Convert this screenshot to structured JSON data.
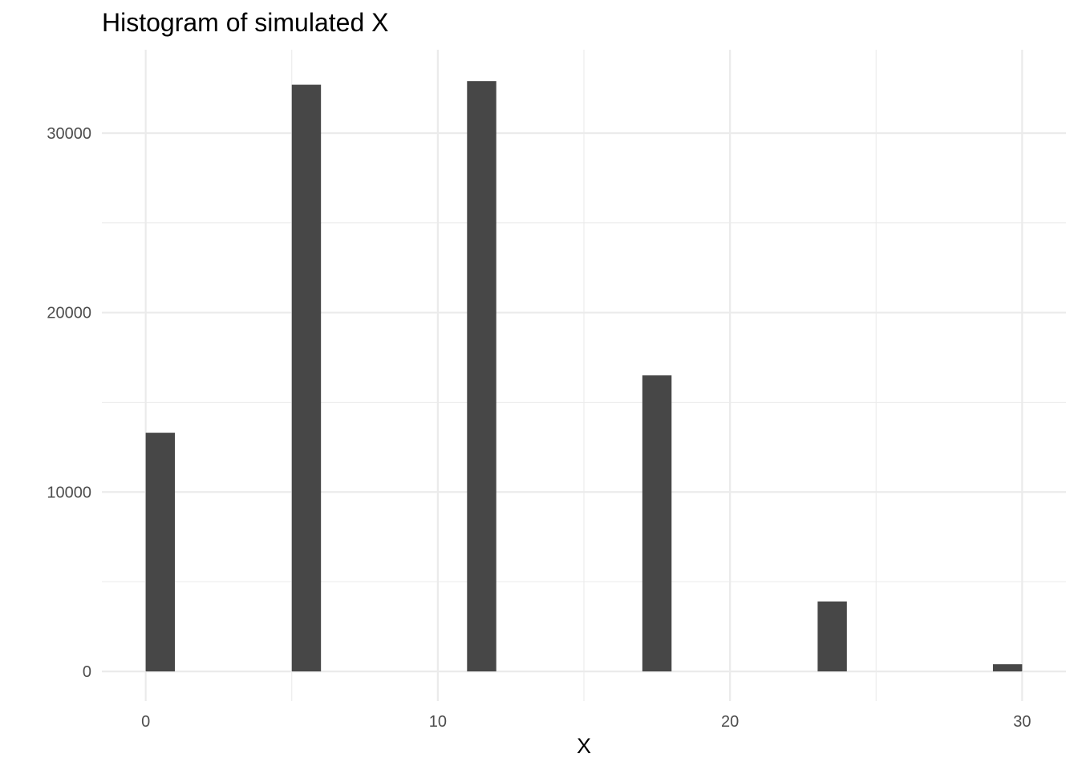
{
  "chart_data": {
    "type": "bar",
    "title": "Histogram of simulated X",
    "xlabel": "X",
    "ylabel": "",
    "bar_color": "#474747",
    "grid_color": "#ebebeb",
    "grid": true,
    "legend": "none",
    "xlim": [
      -1.5,
      31.5
    ],
    "ylim": [
      -1650,
      34650
    ],
    "bin_width": 1,
    "x_ticks": [
      0,
      10,
      20,
      30
    ],
    "x_minor_ticks": [
      5,
      15,
      25
    ],
    "y_ticks": [
      0,
      10000,
      20000,
      30000
    ],
    "y_minor_ticks": [
      5000,
      15000,
      25000
    ],
    "x_tick_labels": [
      "0",
      "10",
      "20",
      "30"
    ],
    "y_tick_labels": [
      "0",
      "10000",
      "20000",
      "30000"
    ],
    "bins": [
      {
        "x0": 0,
        "x1": 1,
        "count": 13300
      },
      {
        "x0": 5,
        "x1": 6,
        "count": 32700
      },
      {
        "x0": 11,
        "x1": 12,
        "count": 32900
      },
      {
        "x0": 17,
        "x1": 18,
        "count": 16500
      },
      {
        "x0": 23,
        "x1": 24,
        "count": 3900
      },
      {
        "x0": 29,
        "x1": 30,
        "count": 400
      }
    ]
  }
}
